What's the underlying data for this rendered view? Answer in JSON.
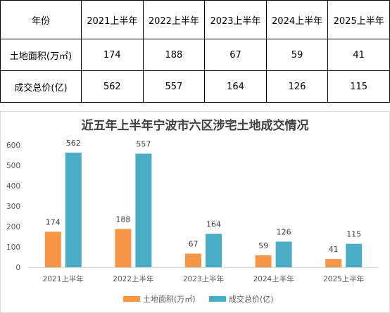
{
  "table": {
    "header": [
      "年份",
      "2021上半年",
      "2022上半年",
      "2023上半年",
      "2024上半年",
      "2025上半年"
    ],
    "rows": [
      {
        "label": "土地面积(万㎡)",
        "values": [
          "174",
          "188",
          "67",
          "59",
          "41"
        ]
      },
      {
        "label": "成交总价(亿)",
        "values": [
          "562",
          "557",
          "164",
          "126",
          "115"
        ]
      }
    ]
  },
  "chart_data": {
    "type": "bar",
    "title": "近五年上半年宁波市六区涉宅土地成交情况",
    "categories": [
      "2021上半年",
      "2022上半年",
      "2023上半年",
      "2024上半年",
      "2025上半年"
    ],
    "series": [
      {
        "name": "土地面积(万㎡)",
        "values": [
          174,
          188,
          67,
          59,
          41
        ],
        "color": "#F79646"
      },
      {
        "name": "成交总价(亿)",
        "values": [
          562,
          557,
          164,
          126,
          115
        ],
        "color": "#4BACC6"
      }
    ],
    "ylim": [
      0,
      600
    ],
    "yticks": [
      0,
      100,
      200,
      300,
      400,
      500,
      600
    ],
    "grid": false,
    "legend": "bottom"
  }
}
